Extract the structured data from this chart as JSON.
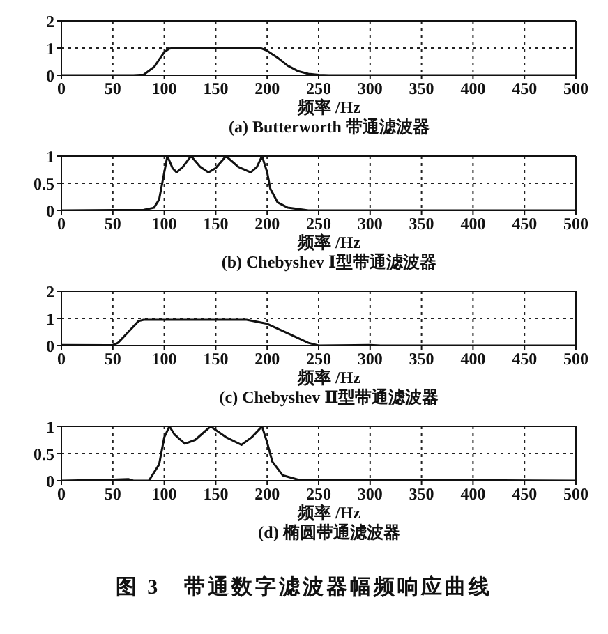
{
  "chart_data": [
    {
      "type": "line",
      "title": "(a) Butterworth 带通滤波器",
      "xlabel": "频率 /Hz",
      "xlim": [
        0,
        500
      ],
      "xticks": [
        0,
        50,
        100,
        150,
        200,
        250,
        300,
        350,
        400,
        450,
        500
      ],
      "ylim": [
        0,
        2
      ],
      "yticks": [
        0,
        1,
        2
      ],
      "grid": true,
      "legend": false,
      "line_style": "solid",
      "color": "#111111",
      "x": [
        0,
        70,
        80,
        90,
        100,
        105,
        110,
        190,
        195,
        200,
        210,
        220,
        230,
        240,
        250,
        260,
        500
      ],
      "values": [
        0,
        0,
        0.02,
        0.3,
        0.85,
        0.98,
        1,
        1,
        0.98,
        0.9,
        0.65,
        0.35,
        0.15,
        0.05,
        0.01,
        0,
        0
      ]
    },
    {
      "type": "line",
      "title": "(b) Chebyshev Ⅰ型带通滤波器",
      "xlabel": "频率 /Hz",
      "xlim": [
        0,
        500
      ],
      "xticks": [
        0,
        50,
        100,
        150,
        200,
        250,
        300,
        350,
        400,
        450,
        500
      ],
      "ylim": [
        0,
        1
      ],
      "yticks": [
        0,
        0.5,
        1
      ],
      "grid": true,
      "legend": false,
      "line_style": "solid",
      "color": "#111111",
      "x": [
        0,
        80,
        90,
        95,
        100,
        103,
        108,
        112,
        118,
        126,
        135,
        143,
        150,
        160,
        172,
        184,
        190,
        195,
        200,
        203,
        210,
        220,
        240,
        500
      ],
      "values": [
        0,
        0.01,
        0.05,
        0.2,
        0.7,
        1,
        0.78,
        0.7,
        0.8,
        1,
        0.8,
        0.7,
        0.78,
        1,
        0.8,
        0.7,
        0.8,
        1,
        0.7,
        0.4,
        0.15,
        0.05,
        0,
        0
      ]
    },
    {
      "type": "line",
      "title": "(c) Chebyshev Ⅱ型带通滤波器",
      "xlabel": "频率 /Hz",
      "xlim": [
        0,
        500
      ],
      "xticks": [
        0,
        50,
        100,
        150,
        200,
        250,
        300,
        350,
        400,
        450,
        500
      ],
      "ylim": [
        0,
        2
      ],
      "yticks": [
        0,
        1,
        2
      ],
      "grid": true,
      "legend": false,
      "line_style": "solid",
      "color": "#111111",
      "x": [
        0,
        45,
        50,
        55,
        65,
        75,
        80,
        180,
        200,
        220,
        240,
        250,
        300,
        310,
        500
      ],
      "values": [
        0.02,
        0.01,
        0.02,
        0.1,
        0.5,
        0.9,
        0.95,
        0.95,
        0.8,
        0.45,
        0.1,
        0,
        0.02,
        0,
        0
      ]
    },
    {
      "type": "line",
      "title": "(d) 椭圆带通滤波器",
      "xlabel": "频率 /Hz",
      "xlim": [
        0,
        500
      ],
      "xticks": [
        0,
        50,
        100,
        150,
        200,
        250,
        300,
        350,
        400,
        450,
        500
      ],
      "ylim": [
        0,
        1
      ],
      "yticks": [
        0,
        0.5,
        1
      ],
      "grid": true,
      "legend": false,
      "line_style": "solid",
      "color": "#111111",
      "x": [
        0,
        50,
        65,
        70,
        85,
        95,
        100,
        105,
        110,
        120,
        130,
        145,
        160,
        175,
        185,
        195,
        200,
        205,
        215,
        230,
        250,
        300,
        400,
        500
      ],
      "values": [
        0,
        0.02,
        0.03,
        0,
        0,
        0.3,
        0.8,
        1,
        0.85,
        0.68,
        0.75,
        1,
        0.8,
        0.66,
        0.8,
        1,
        0.7,
        0.35,
        0.1,
        0.02,
        0.01,
        0.02,
        0.01,
        0
      ],
      "annotations": [
        "图 3　带通数字滤波器幅频响应曲线"
      ]
    }
  ]
}
